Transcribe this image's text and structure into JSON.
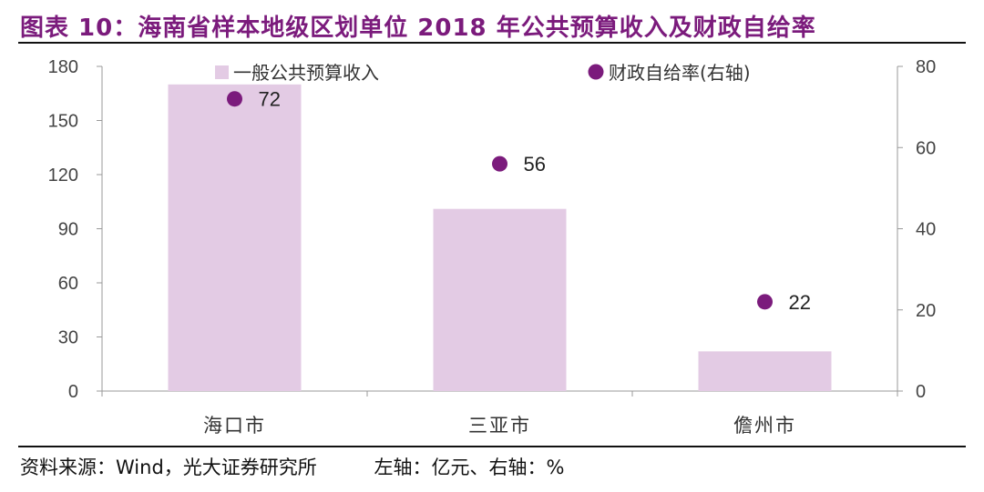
{
  "figure": {
    "title": "图表 10：海南省样本地级区划单位 2018 年公共预算收入及财政自给率",
    "source": "资料来源：Wind，光大证券研究所",
    "unit_note": "左轴：亿元、右轴：%"
  },
  "colors": {
    "title": "#7b1b7c",
    "bar": "#e3cbe4",
    "dot": "#7b1b7c"
  },
  "chart_data": {
    "type": "bar",
    "categories": [
      "海口市",
      "三亚市",
      "儋州市"
    ],
    "series": [
      {
        "name": "一般公共预算收入",
        "type": "bar",
        "axis": "left",
        "values": [
          170,
          101,
          22
        ]
      },
      {
        "name": "财政自给率(右轴)",
        "type": "scatter",
        "axis": "right",
        "values": [
          72,
          56,
          22
        ],
        "labels": [
          "72",
          "56",
          "22"
        ]
      }
    ],
    "ylim": [
      0,
      180
    ],
    "y_ticks": [
      "0",
      "30",
      "60",
      "90",
      "120",
      "150",
      "180"
    ],
    "y2lim": [
      0,
      80
    ],
    "y2_ticks": [
      "0",
      "20",
      "40",
      "60",
      "80"
    ],
    "legend_position": "top",
    "grid": false
  }
}
